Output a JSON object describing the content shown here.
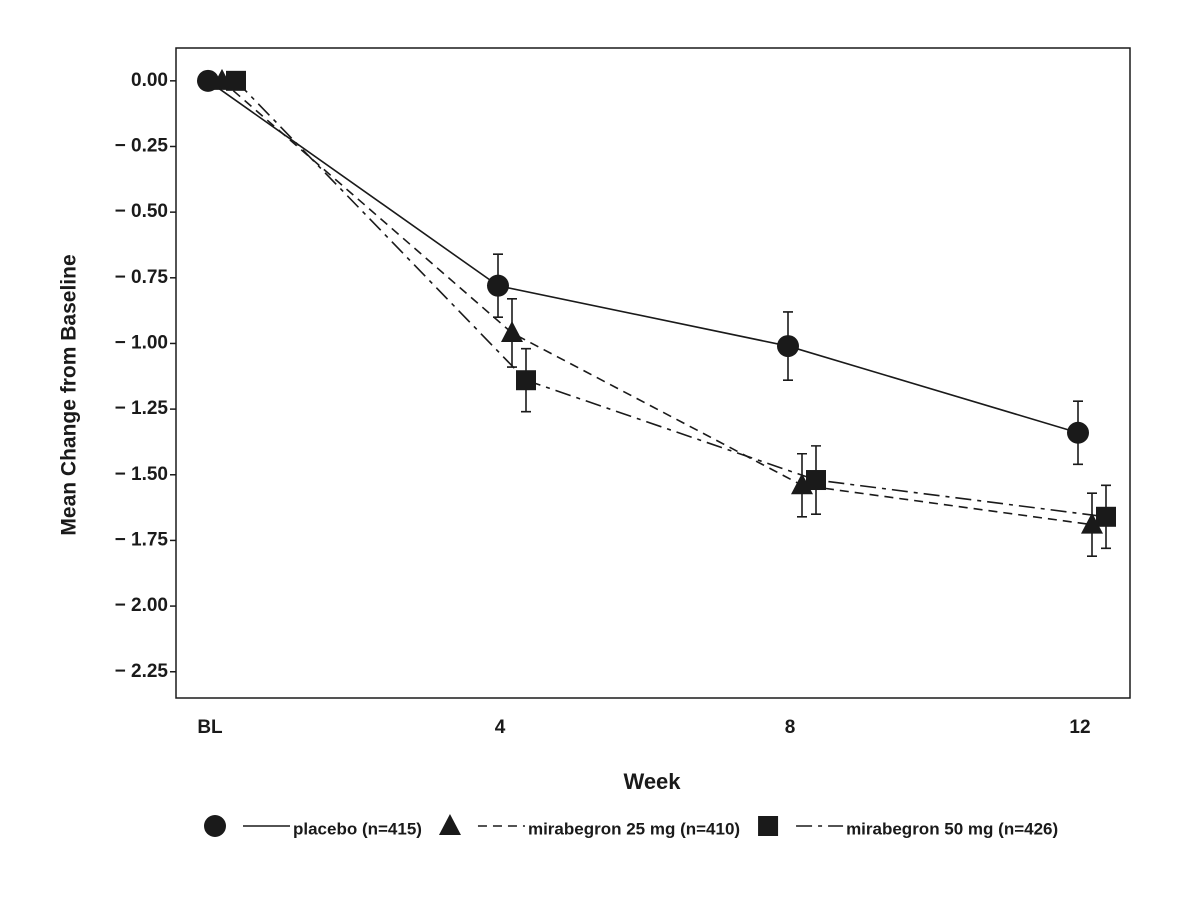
{
  "chart_data": {
    "type": "line",
    "x_label": "Week",
    "y_label": "Mean Change from Baseline",
    "categories": [
      "BL",
      "4",
      "8",
      "12"
    ],
    "series": [
      {
        "name": "placebo (n=415)",
        "color": "#1a1a1a",
        "marker": "circle",
        "line_style": "solid",
        "values": [
          0,
          -0.78,
          -1.01,
          -1.34
        ],
        "errors": [
          0,
          0.12,
          0.13,
          0.12
        ]
      },
      {
        "name": "mirabegron 25 mg (n=410)",
        "color": "#1a1a1a",
        "marker": "triangle",
        "line_style": "dashed",
        "values": [
          0,
          -0.96,
          -1.54,
          -1.69
        ],
        "errors": [
          0,
          0.13,
          0.12,
          0.12
        ]
      },
      {
        "name": "mirabegron 50 mg (n=426)",
        "color": "#1a1a1a",
        "marker": "square",
        "line_style": "dashdot",
        "values": [
          0,
          -1.14,
          -1.52,
          -1.66
        ],
        "errors": [
          0,
          0.12,
          0.13,
          0.12
        ]
      }
    ],
    "ylim": [
      -2.35,
      0.125
    ],
    "yticks": [
      {
        "value": 0,
        "label": "0.00"
      },
      {
        "value": -0.25,
        "label": "− 0.25"
      },
      {
        "value": -0.5,
        "label": "− 0.50"
      },
      {
        "value": -0.75,
        "label": "− 0.75"
      },
      {
        "value": -1,
        "label": "− 1.00"
      },
      {
        "value": -1.25,
        "label": "− 1.25"
      },
      {
        "value": -1.5,
        "label": "− 1.50"
      },
      {
        "value": -1.75,
        "label": "− 1.75"
      },
      {
        "value": -2,
        "label": "− 2.00"
      },
      {
        "value": -2.25,
        "label": "− 2.25"
      }
    ],
    "grid": false,
    "legend": "bottom"
  }
}
